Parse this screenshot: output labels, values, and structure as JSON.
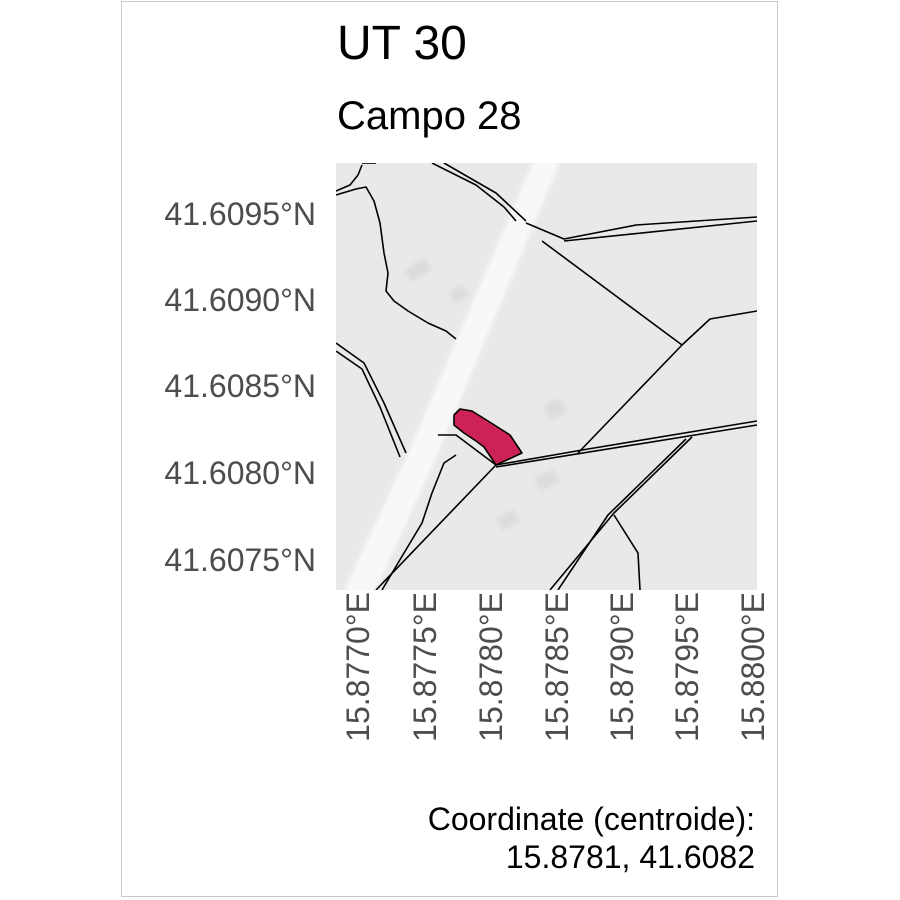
{
  "title": "UT 30",
  "subtitle": "Campo 28",
  "y_axis": {
    "labels": [
      "41.6095°N",
      "41.6090°N",
      "41.6085°N",
      "41.6080°N",
      "41.6075°N"
    ],
    "values": [
      41.6095,
      41.609,
      41.6085,
      41.608,
      41.6075
    ]
  },
  "x_axis": {
    "labels": [
      "15.8770°E",
      "15.8775°E",
      "15.8780°E",
      "15.8785°E",
      "15.8790°E",
      "15.8795°E",
      "15.8800°E"
    ],
    "values": [
      15.877,
      15.8775,
      15.878,
      15.8785,
      15.879,
      15.8795,
      15.88
    ]
  },
  "caption": {
    "line1": "Coordinate (centroide):",
    "line2": "15.8781, 41.6082"
  },
  "parcel": {
    "fill": "#CC2255",
    "centroid_lon": 15.8781,
    "centroid_lat": 41.6082
  },
  "colors": {
    "background": "#E9E9E8",
    "road": "#F7F7F7",
    "line": "#000000"
  }
}
